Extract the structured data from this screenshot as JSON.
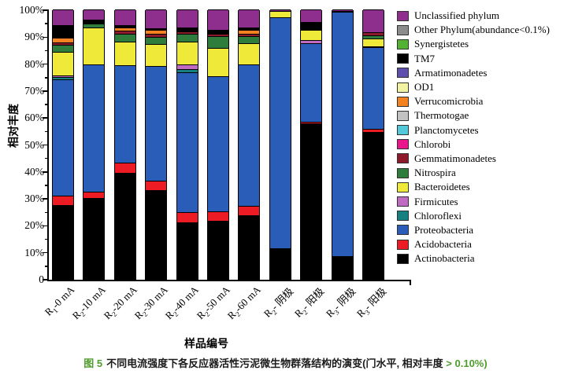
{
  "chart_data": {
    "type": "bar",
    "stacked": true,
    "stack_order": "bottom_to_top",
    "grid": false,
    "legend_position": "right",
    "xlabel": "样品编号",
    "ylabel": "相对丰度",
    "ylim": [
      0,
      100
    ],
    "yticks": [
      "100%",
      "90%",
      "80%",
      "70%",
      "60%",
      "50%",
      "40%",
      "30%",
      "20%",
      "10%",
      "0"
    ],
    "categories": [
      "R₁-0 mA",
      "R₂-10 mA",
      "R₂-20 mA",
      "R₂-30 mA",
      "R₂-40 mA",
      "R₂-50 mA",
      "R₂-60 mA",
      "R₂- 阴极",
      "R₂- 阳极",
      "R₃- 阴极",
      "R₃- 阳极"
    ],
    "legend_top_to_bottom": [
      "Unclassified phylum",
      "Other Phylum(abundance<0.1%)",
      "Synergistetes",
      "TM7",
      "Armatimonadetes",
      "OD1",
      "Verrucomicrobia",
      "Thermotogae",
      "Planctomycetes",
      "Chlorobi",
      "Gemmatimonadetes",
      "Nitrospira",
      "Bacteroidetes",
      "Firmicutes",
      "Chloroflexi",
      "Proteobacteria",
      "Acidobacteria",
      "Actinobacteria"
    ],
    "series": [
      {
        "name": "Actinobacteria",
        "color": "#000000",
        "values": [
          27.5,
          30.0,
          39.3,
          33.0,
          21.0,
          21.5,
          23.5,
          11.5,
          57.8,
          8.5,
          54.5
        ]
      },
      {
        "name": "Acidobacteria",
        "color": "#ED1C24",
        "values": [
          3.5,
          2.5,
          3.9,
          3.5,
          3.7,
          3.6,
          3.6,
          0,
          0.5,
          0,
          1.3
        ]
      },
      {
        "name": "Proteobacteria",
        "color": "#2A5DB8",
        "values": [
          43.0,
          47.0,
          36.1,
          42.4,
          52.1,
          50.2,
          52.6,
          85.5,
          29.1,
          90.5,
          30.2
        ]
      },
      {
        "name": "Chloroflexi",
        "color": "#178080",
        "values": [
          0.8,
          0,
          0,
          0,
          1.0,
          0,
          0,
          0,
          0,
          0,
          0
        ]
      },
      {
        "name": "Firmicutes",
        "color": "#BF6BC2",
        "values": [
          0.6,
          0,
          0,
          0,
          1.7,
          0,
          0,
          0,
          1.2,
          0,
          0.4
        ]
      },
      {
        "name": "Bacteroidetes",
        "color": "#EFE93A",
        "values": [
          9.0,
          13.7,
          8.8,
          8.3,
          8.5,
          10.3,
          7.8,
          2.5,
          3.9,
          0,
          2.9
        ]
      },
      {
        "name": "Nitrospira",
        "color": "#2E7D3C",
        "values": [
          2.5,
          1.5,
          2.9,
          2.7,
          2.9,
          4.4,
          2.7,
          0,
          0,
          0,
          1.0
        ]
      },
      {
        "name": "Gemmatimonadetes",
        "color": "#8C1A2A",
        "values": [
          1.0,
          0,
          1.0,
          1.2,
          0.8,
          1.0,
          0.9,
          0,
          0,
          0,
          1.2
        ]
      },
      {
        "name": "Chlorobi",
        "color": "#EC168C",
        "values": [
          0,
          0,
          0,
          0,
          0,
          0,
          0,
          0,
          0,
          0,
          0
        ]
      },
      {
        "name": "Planctomycetes",
        "color": "#52C8D8",
        "values": [
          0,
          0,
          0,
          0,
          0,
          0,
          0,
          0,
          0,
          0,
          0
        ]
      },
      {
        "name": "Thermotogae",
        "color": "#C2C2C2",
        "values": [
          0,
          0,
          0,
          0,
          0,
          0,
          0,
          0,
          0,
          0,
          0
        ]
      },
      {
        "name": "Verrucomicrobia",
        "color": "#F58220",
        "values": [
          1.5,
          0,
          1.4,
          1.2,
          0,
          0,
          1.3,
          0,
          0,
          0,
          0
        ]
      },
      {
        "name": "OD1",
        "color": "#F2F2A3",
        "values": [
          0,
          0,
          0,
          0,
          0,
          0,
          0,
          0,
          0,
          0,
          0
        ]
      },
      {
        "name": "Armatimonadetes",
        "color": "#5E4FAE",
        "values": [
          0,
          0,
          0,
          0,
          0,
          0,
          0,
          0,
          0,
          0,
          0
        ]
      },
      {
        "name": "TM7",
        "color": "#000000",
        "values": [
          4.8,
          1.4,
          0.8,
          0.8,
          1.7,
          1.5,
          1.0,
          0,
          2.9,
          0.5,
          0
        ]
      },
      {
        "name": "Synergistetes",
        "color": "#53B234",
        "values": [
          0,
          0,
          0,
          0,
          0,
          0,
          0,
          0,
          0,
          0,
          0
        ]
      },
      {
        "name": "Other Phylum(abundance<0.1%)",
        "color": "#8C8C8C",
        "values": [
          0,
          0,
          0,
          0,
          0,
          0,
          0,
          0,
          0,
          0,
          0
        ]
      },
      {
        "name": "Unclassified phylum",
        "color": "#8E2F8E",
        "values": [
          5.8,
          3.9,
          5.8,
          6.9,
          6.6,
          7.5,
          6.6,
          0.5,
          4.6,
          0.5,
          8.5
        ]
      }
    ]
  },
  "caption": {
    "fig_label": "图 5",
    "body": "不同电流强度下各反应器活性污泥微生物群落结构的演变(门水平, 相对丰度 ",
    "threshold": "> 0.10%)"
  },
  "colors": {
    "caption_highlight": "#4F9C2D",
    "axis": "#000000",
    "background": "#FFFFFF"
  }
}
